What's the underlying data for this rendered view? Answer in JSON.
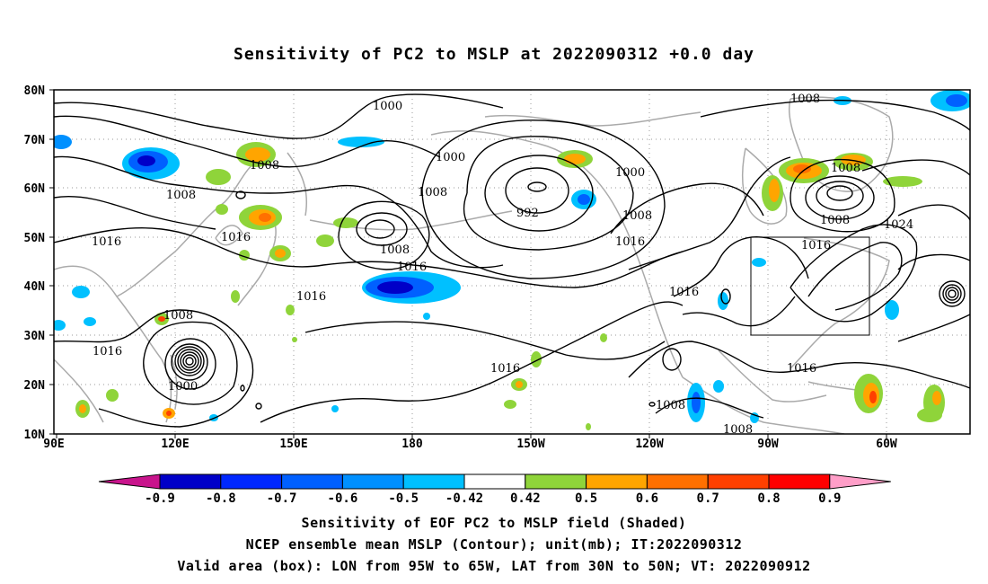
{
  "title": "Sensitivity of PC2 to MSLP at 2022090312 +0.0 day",
  "axes": {
    "lat_labels": [
      "80N",
      "70N",
      "60N",
      "50N",
      "40N",
      "30N",
      "20N",
      "10N"
    ],
    "lon_labels": [
      "90E",
      "120E",
      "150E",
      "180",
      "150W",
      "120W",
      "90W",
      "60W"
    ]
  },
  "contour_labels": {
    "c1000a": "1000",
    "c1000b": "1000",
    "c1000c": "1000",
    "c1000d": "1000",
    "c1008a": "1008",
    "c1008b": "1008",
    "c1008c": "1008",
    "c1008d": "1008",
    "c1008e": "1008",
    "c1008f": "1008",
    "c1008g": "1008",
    "c1008h": "1008",
    "c1008i": "1008",
    "c1008j": "1008",
    "c1008k": "1008",
    "c992": "992",
    "c1016a": "1016",
    "c1016b": "1016",
    "c1016c": "1016",
    "c1016d": "1016",
    "c1016e": "1016",
    "c1016f": "1016",
    "c1016g": "1016",
    "c1016h": "1016",
    "c1024": "1024"
  },
  "colorbar": {
    "labels": [
      "-0.9",
      "-0.8",
      "-0.7",
      "-0.6",
      "-0.5",
      "-0.42",
      "0.42",
      "0.5",
      "0.6",
      "0.7",
      "0.8",
      "0.9"
    ],
    "colors": [
      "#0000c8",
      "#0028ff",
      "#0060ff",
      "#0090ff",
      "#00c0ff",
      "#ffffff",
      "#8fd43a",
      "#ffa500",
      "#ff7000",
      "#ff4000",
      "#ff0000"
    ],
    "under_color": "#c8148c",
    "over_color": "#ff9ec8"
  },
  "caption": {
    "line1": "Sensitivity of EOF PC2 to MSLP field (Shaded)",
    "line2": "NCEP ensemble mean MSLP (Contour); unit(mb); IT:2022090312",
    "line3": "Valid area (box): LON from 95W to 65W, LAT from 30N to 50N; VT: 2022090912"
  }
}
